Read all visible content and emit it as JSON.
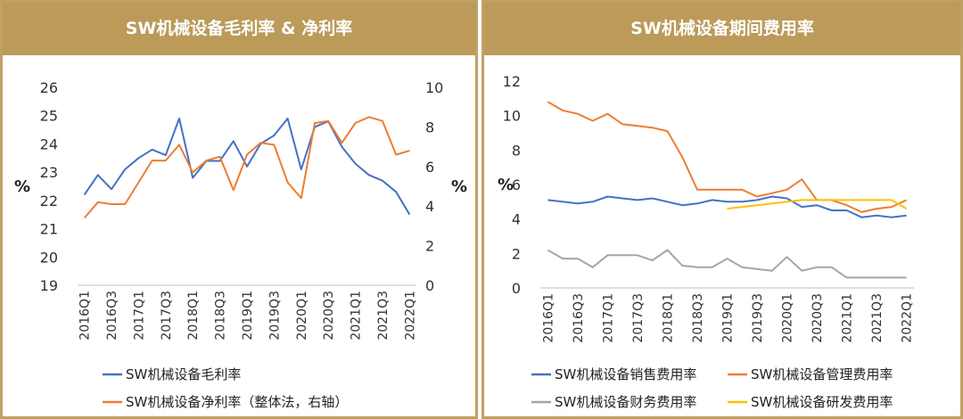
{
  "chart_data": [
    {
      "type": "line",
      "title": "SW机械设备毛利率 & 净利率",
      "ylabel": "%",
      "ylabel_right": "%",
      "ylim": [
        19,
        26
      ],
      "ylim_right": [
        0,
        10
      ],
      "yticks": [
        "19",
        "20",
        "21",
        "22",
        "23",
        "24",
        "25",
        "26"
      ],
      "yticks_right": [
        "0",
        "2",
        "4",
        "6",
        "8",
        "10"
      ],
      "categories": [
        "2016Q1",
        "2016Q2",
        "2016Q3",
        "2016Q4",
        "2017Q1",
        "2017Q2",
        "2017Q3",
        "2017Q4",
        "2018Q1",
        "2018Q2",
        "2018Q3",
        "2018Q4",
        "2019Q1",
        "2019Q2",
        "2019Q3",
        "2019Q4",
        "2020Q1",
        "2020Q2",
        "2020Q3",
        "2020Q4",
        "2021Q1",
        "2021Q2",
        "2021Q3",
        "2021Q4",
        "2022Q1"
      ],
      "tick_labels": [
        "2016Q1",
        "2016Q3",
        "2017Q1",
        "2017Q3",
        "2018Q1",
        "2018Q3",
        "2019Q1",
        "2019Q3",
        "2020Q1",
        "2020Q3",
        "2021Q1",
        "2021Q3",
        "2022Q1"
      ],
      "series": [
        {
          "name": "SW机械设备毛利率",
          "axis": "left",
          "color": "#4472c4",
          "values": [
            22.2,
            22.9,
            22.4,
            23.1,
            23.5,
            23.8,
            23.6,
            24.9,
            22.8,
            23.4,
            23.4,
            24.1,
            23.2,
            24.0,
            24.3,
            24.9,
            23.1,
            24.6,
            24.8,
            23.9,
            23.3,
            22.9,
            22.7,
            22.3,
            21.5
          ]
        },
        {
          "name": "SW机械设备净利率（整体法，右轴）",
          "axis": "right",
          "color": "#ed7d31",
          "values": [
            3.4,
            4.2,
            4.1,
            4.1,
            5.2,
            6.3,
            6.3,
            7.1,
            5.7,
            6.3,
            6.5,
            4.8,
            6.6,
            7.2,
            7.1,
            5.2,
            4.4,
            8.2,
            8.3,
            7.2,
            8.2,
            8.5,
            8.3,
            6.6,
            6.8
          ]
        }
      ]
    },
    {
      "type": "line",
      "title": "SW机械设备期间费用率",
      "ylabel": "%",
      "ylim": [
        0,
        12
      ],
      "yticks": [
        "0",
        "2",
        "4",
        "6",
        "8",
        "10",
        "12"
      ],
      "categories": [
        "2016Q1",
        "2016Q2",
        "2016Q3",
        "2016Q4",
        "2017Q1",
        "2017Q2",
        "2017Q3",
        "2017Q4",
        "2018Q1",
        "2018Q2",
        "2018Q3",
        "2018Q4",
        "2019Q1",
        "2019Q2",
        "2019Q3",
        "2019Q4",
        "2020Q1",
        "2020Q2",
        "2020Q3",
        "2020Q4",
        "2021Q1",
        "2021Q2",
        "2021Q3",
        "2021Q4",
        "2022Q1"
      ],
      "tick_labels": [
        "2016Q1",
        "2016Q3",
        "2017Q1",
        "2017Q3",
        "2018Q1",
        "2018Q3",
        "2019Q1",
        "2019Q3",
        "2020Q1",
        "2020Q3",
        "2021Q1",
        "2021Q3",
        "2022Q1"
      ],
      "series": [
        {
          "name": "SW机械设备销售费用率",
          "color": "#4472c4",
          "values": [
            5.1,
            5.0,
            4.9,
            5.0,
            5.3,
            5.2,
            5.1,
            5.2,
            5.0,
            4.8,
            4.9,
            5.1,
            5.0,
            5.0,
            5.1,
            5.3,
            5.2,
            4.7,
            4.8,
            4.5,
            4.5,
            4.1,
            4.2,
            4.1,
            4.2
          ]
        },
        {
          "name": "SW机械设备管理费用率",
          "color": "#ed7d31",
          "values": [
            10.8,
            10.3,
            10.1,
            9.7,
            10.1,
            9.5,
            9.4,
            9.3,
            9.1,
            7.6,
            5.7,
            5.7,
            5.7,
            5.7,
            5.3,
            5.5,
            5.7,
            6.3,
            5.1,
            5.1,
            4.8,
            4.4,
            4.6,
            4.7,
            5.1
          ]
        },
        {
          "name": "SW机械设备财务费用率",
          "color": "#a5a5a5",
          "values": [
            2.2,
            1.7,
            1.7,
            1.2,
            1.9,
            1.9,
            1.9,
            1.6,
            2.2,
            1.3,
            1.2,
            1.2,
            1.7,
            1.2,
            1.1,
            1.0,
            1.8,
            1.0,
            1.2,
            1.2,
            0.6,
            0.6,
            0.6,
            0.6,
            0.6
          ]
        },
        {
          "name": "SW机械设备研发费用率",
          "color": "#ffc000",
          "values": [
            null,
            null,
            null,
            null,
            null,
            null,
            null,
            null,
            null,
            null,
            null,
            null,
            4.6,
            4.7,
            4.8,
            4.9,
            5.0,
            5.1,
            5.1,
            5.1,
            5.1,
            5.1,
            5.1,
            5.1,
            4.6
          ]
        }
      ]
    }
  ]
}
